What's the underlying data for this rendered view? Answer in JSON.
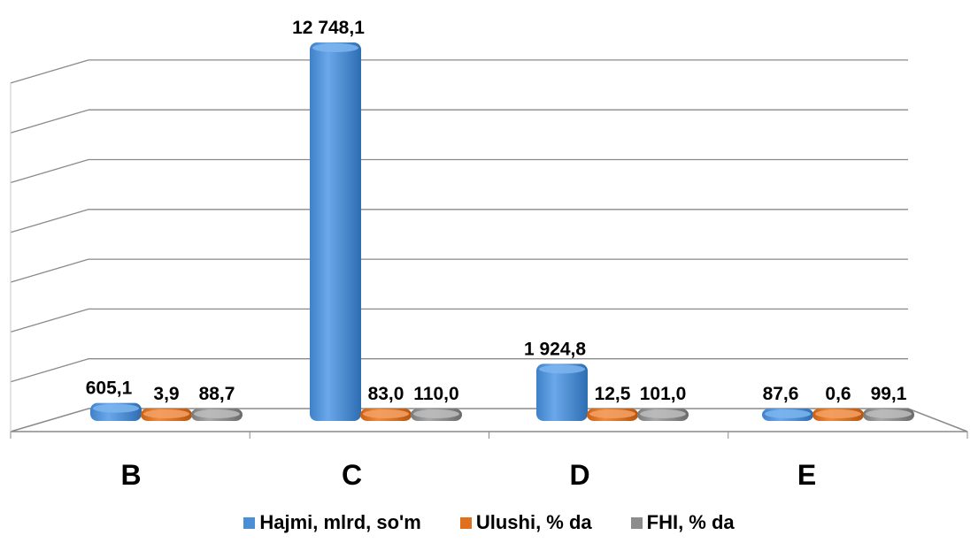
{
  "chart_data": {
    "type": "bar",
    "title": "",
    "xlabel": "",
    "ylabel": "",
    "categories": [
      "B",
      "C",
      "D",
      "E"
    ],
    "series": [
      {
        "name": "Hajmi, mlrd, so'm",
        "color": "#4a8fd6",
        "values": [
          605.1,
          12748.1,
          1924.8,
          87.6
        ],
        "labels": [
          "605,1",
          "12 748,1",
          "1 924,8",
          "87,6"
        ]
      },
      {
        "name": "Ulushi, % da",
        "color": "#e0701e",
        "values": [
          3.9,
          83.0,
          12.5,
          0.6
        ],
        "labels": [
          "3,9",
          "83,0",
          "12,5",
          "0,6"
        ]
      },
      {
        "name": "FHI, % da",
        "color": "#8c8c8c",
        "values": [
          88.7,
          110.0,
          101.0,
          99.1
        ],
        "labels": [
          "88,7",
          "110,0",
          "101,0",
          "99,1"
        ]
      }
    ],
    "ylim": [
      0,
      14000
    ],
    "grid": true,
    "legend_position": "bottom"
  }
}
